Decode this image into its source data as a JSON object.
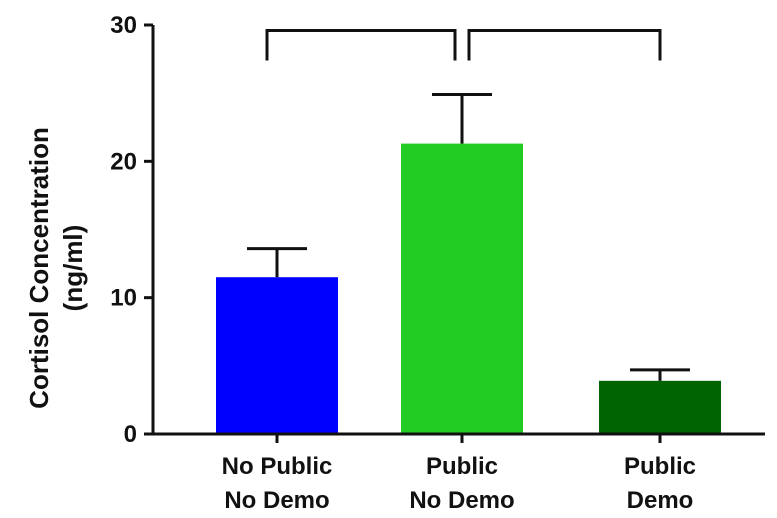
{
  "chart_data": {
    "type": "bar",
    "ylabel_line1": "Cortisol Concentration",
    "ylabel_line2": "(ng/ml)",
    "ylim": [
      0,
      30
    ],
    "yticks": [
      0,
      10,
      20,
      30
    ],
    "grid": false,
    "categories": [
      {
        "line1": "No Public",
        "line2": "No Demo"
      },
      {
        "line1": "Public",
        "line2": "No Demo"
      },
      {
        "line1": "Public",
        "line2": "Demo"
      }
    ],
    "values": [
      11.5,
      21.3,
      3.9
    ],
    "errors": [
      2.1,
      3.6,
      0.8
    ],
    "colors": [
      "#0000ff",
      "#22cc22",
      "#006400"
    ],
    "brackets": [
      {
        "from": 0,
        "to": 1,
        "y": 29.6
      },
      {
        "from": 1,
        "to": 2,
        "y": 29.6
      }
    ]
  }
}
